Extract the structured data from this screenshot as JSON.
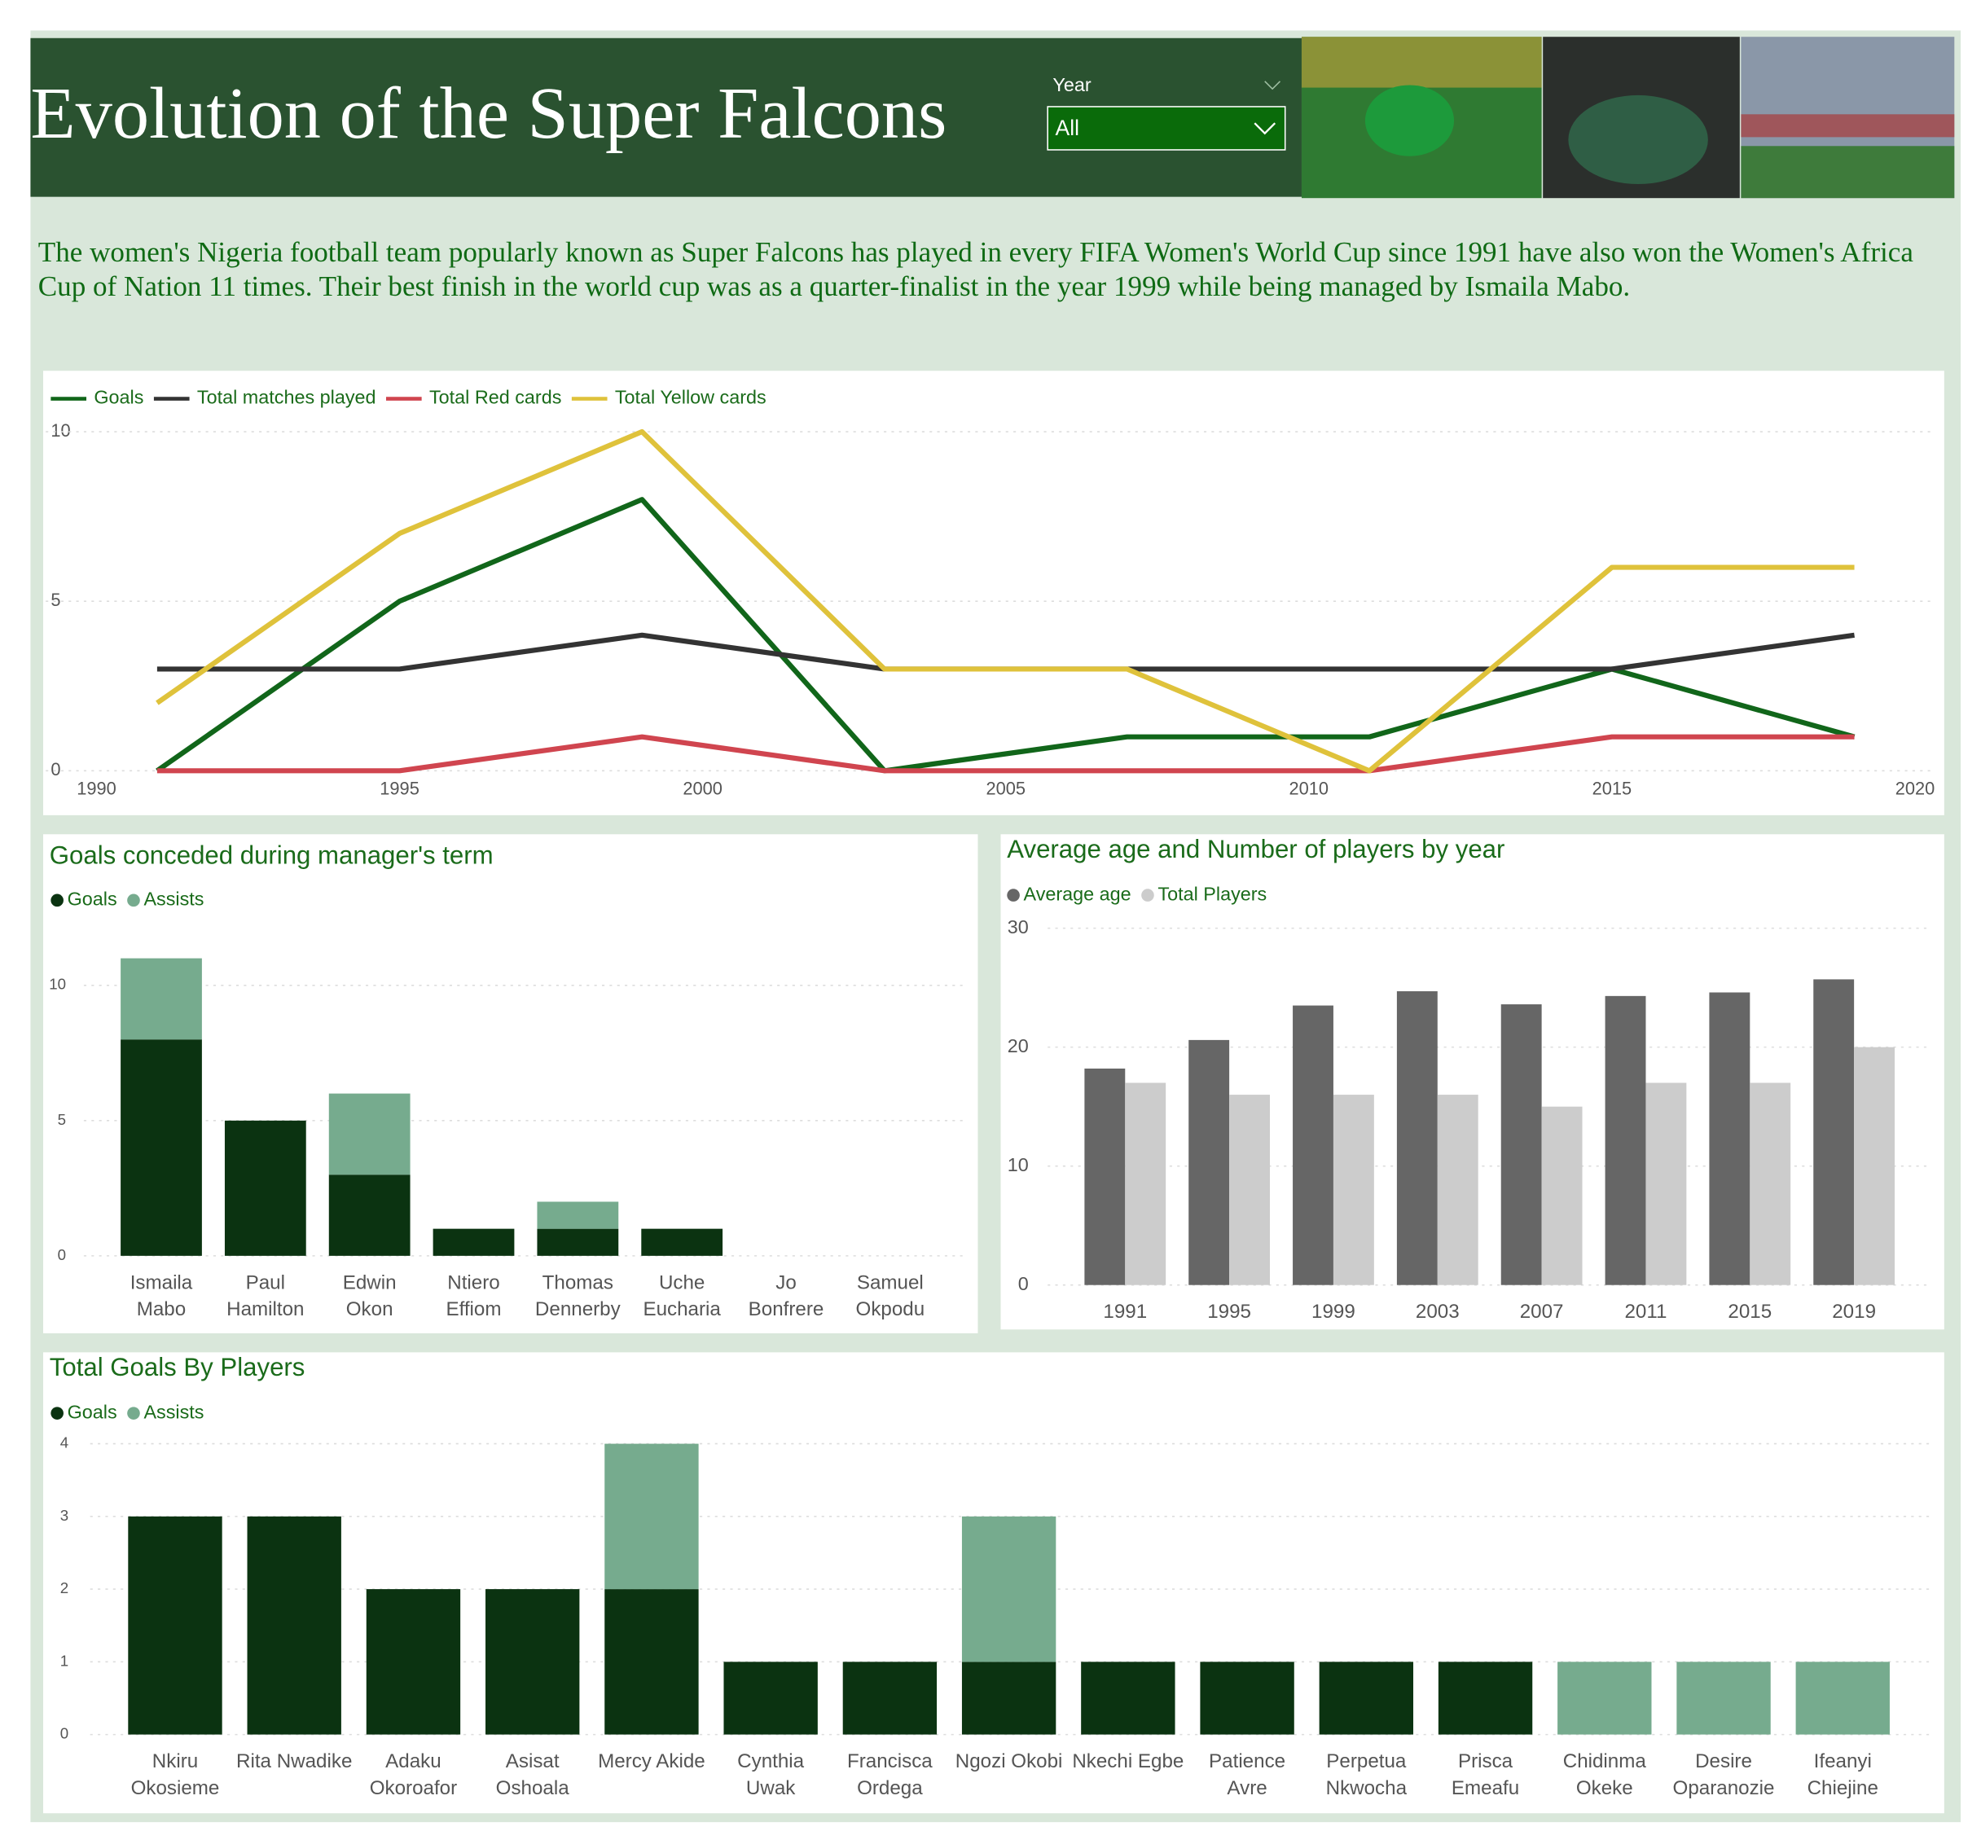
{
  "header": {
    "title": "Evolution of the Super Falcons"
  },
  "slicer": {
    "label": "Year",
    "value": "All"
  },
  "description": "The women's Nigeria football team popularly known as Super Falcons has played in every FIFA Women's World Cup since 1991 have also won the Women's Africa Cup of Nation 11 times. Their best finish in the world cup was as a quarter-finalist in the year 1999 while being managed by Ismaila Mabo.",
  "chart_data": [
    {
      "type": "line",
      "x": [
        1991,
        1995,
        1999,
        2003,
        2007,
        2011,
        2015,
        2019
      ],
      "xlim": [
        1990,
        2020
      ],
      "xticks": [
        1990,
        1995,
        2000,
        2005,
        2010,
        2015,
        2020
      ],
      "ylim": [
        0,
        10
      ],
      "yticks": [
        0,
        5,
        10
      ],
      "grid": true,
      "legend": "top-left",
      "series": [
        {
          "name": "Goals",
          "color": "#11661a",
          "values": [
            0,
            5,
            8,
            0,
            1,
            1,
            3,
            1
          ]
        },
        {
          "name": "Total matches played",
          "color": "#333333",
          "values": [
            3,
            3,
            4,
            3,
            3,
            3,
            3,
            4
          ]
        },
        {
          "name": "Total Red cards",
          "color": "#d0454f",
          "values": [
            0,
            0,
            1,
            0,
            0,
            0,
            1,
            1
          ]
        },
        {
          "name": "Total Yellow cards",
          "color": "#dfc23b",
          "values": [
            2,
            7,
            10,
            3,
            3,
            0,
            6,
            6
          ]
        }
      ]
    },
    {
      "type": "bar",
      "stacked": true,
      "title": "Goals conceded during manager's term",
      "categories": [
        "Ismaila Mabo",
        "Paul Hamilton",
        "Edwin Okon",
        "Ntiero Effiom",
        "Thomas Dennerby",
        "Uche Eucharia",
        "Jo Bonfrere",
        "Samuel Okpodu"
      ],
      "ylim": [
        0,
        12
      ],
      "yticks": [
        0,
        5,
        10
      ],
      "grid": true,
      "legend": "top-left",
      "series": [
        {
          "name": "Goals",
          "color": "#0b3311",
          "values": [
            8,
            5,
            3,
            1,
            1,
            1,
            0,
            0
          ]
        },
        {
          "name": "Assists",
          "color": "#76ab8e",
          "values": [
            3,
            0,
            3,
            0,
            1,
            0,
            0,
            0
          ]
        }
      ]
    },
    {
      "type": "bar",
      "stacked": false,
      "title": "Average age and Number of players by year",
      "categories": [
        "1991",
        "1995",
        "1999",
        "2003",
        "2007",
        "2011",
        "2015",
        "2019"
      ],
      "ylim": [
        0,
        30
      ],
      "yticks": [
        0,
        10,
        20,
        30
      ],
      "grid": true,
      "legend": "top-left",
      "series": [
        {
          "name": "Average age",
          "color": "#666666",
          "values": [
            18.2,
            20.6,
            23.5,
            24.7,
            23.6,
            24.3,
            24.6,
            25.7
          ]
        },
        {
          "name": "Total Players",
          "color": "#cccccc",
          "values": [
            17,
            16,
            16,
            16,
            15,
            17,
            17,
            20
          ]
        }
      ]
    },
    {
      "type": "bar",
      "stacked": true,
      "title": "Total Goals By Players",
      "categories": [
        "Nkiru Okosieme",
        "Rita Nwadike",
        "Adaku Okoroafor",
        "Asisat Oshoala",
        "Mercy Akide",
        "Cynthia Uwak",
        "Francisca Ordega",
        "Ngozi Okobi",
        "Nkechi Egbe",
        "Patience Avre",
        "Perpetua Nkwocha",
        "Prisca Emeafu",
        "Chidinma Okeke",
        "Desire Oparanozie",
        "Ifeanyi Chiejine"
      ],
      "ylim": [
        0,
        4
      ],
      "yticks": [
        0,
        1,
        2,
        3,
        4
      ],
      "grid": true,
      "legend": "top-left",
      "series": [
        {
          "name": "Goals",
          "color": "#0b3311",
          "values": [
            3,
            3,
            2,
            2,
            2,
            1,
            1,
            1,
            1,
            1,
            1,
            1,
            0,
            0,
            0
          ]
        },
        {
          "name": "Assists",
          "color": "#76ab8e",
          "values": [
            0,
            0,
            0,
            0,
            2,
            0,
            0,
            2,
            0,
            0,
            0,
            0,
            1,
            1,
            1
          ]
        }
      ]
    }
  ]
}
